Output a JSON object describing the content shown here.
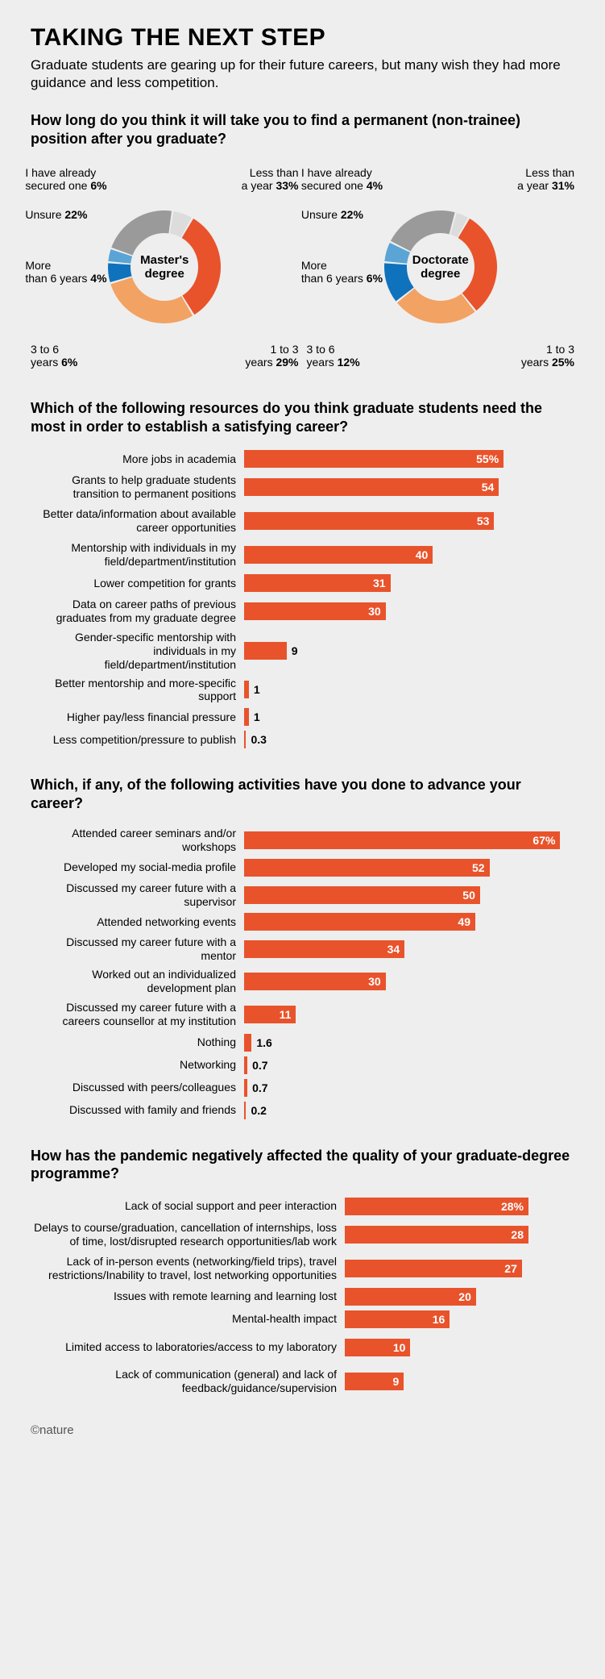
{
  "header": {
    "title": "TAKING THE NEXT STEP",
    "subtitle": "Graduate students are gearing up for their future careers, but many wish they had more guidance and less competition."
  },
  "q1": {
    "title": "How long do you think it will take you to find a permanent (non-trainee) position after you graduate?",
    "donuts": [
      {
        "center": "Master's degree",
        "slices": [
          {
            "label_a": "Less than",
            "label_b": "a year",
            "pct": 33,
            "color": "#e8532b"
          },
          {
            "label_a": "1 to 3",
            "label_b": "years",
            "pct": 29,
            "color": "#f2a263"
          },
          {
            "label_a": "3 to 6",
            "label_b": "years",
            "pct": 6,
            "color": "#0f72bd"
          },
          {
            "label_a": "More",
            "label_b": "than 6 years",
            "pct": 4,
            "color": "#5aa4d6"
          },
          {
            "label_a": "Unsure",
            "label_b": "",
            "pct": 22,
            "color": "#9a9a9a"
          },
          {
            "label_a": "I have already",
            "label_b": "secured one",
            "pct": 6,
            "color": "#dcdcdc"
          }
        ]
      },
      {
        "center": "Doctorate degree",
        "slices": [
          {
            "label_a": "Less than",
            "label_b": "a year",
            "pct": 31,
            "color": "#e8532b"
          },
          {
            "label_a": "1 to 3",
            "label_b": "years",
            "pct": 25,
            "color": "#f2a263"
          },
          {
            "label_a": "3 to 6",
            "label_b": "years",
            "pct": 12,
            "color": "#0f72bd"
          },
          {
            "label_a": "More",
            "label_b": "than 6 years",
            "pct": 6,
            "color": "#5aa4d6"
          },
          {
            "label_a": "Unsure",
            "label_b": "",
            "pct": 22,
            "color": "#9a9a9a"
          },
          {
            "label_a": "I have already",
            "label_b": "secured one",
            "pct": 4,
            "color": "#dcdcdc"
          }
        ]
      }
    ],
    "donut_style": {
      "outer_r": 70,
      "inner_r": 42,
      "gap_deg": 2,
      "start_deg": 30
    }
  },
  "q2": {
    "title": "Which of the following resources do you think graduate students need the most in order to establish a satisfying career?",
    "max": 70,
    "bar_color": "#e8532b",
    "items": [
      {
        "label": "More jobs in academia",
        "val": 55,
        "disp": "55%"
      },
      {
        "label": "Grants to help graduate students transition to permanent positions",
        "val": 54,
        "disp": "54"
      },
      {
        "label": "Better data/information about available career opportunities",
        "val": 53,
        "disp": "53"
      },
      {
        "label": "Mentorship with individuals in my field/department/institution",
        "val": 40,
        "disp": "40"
      },
      {
        "label": "Lower competition for grants",
        "val": 31,
        "disp": "31"
      },
      {
        "label": "Data on career paths of previous graduates from my graduate degree",
        "val": 30,
        "disp": "30"
      },
      {
        "label": "Gender-specific mentorship with individuals in my field/department/institution",
        "val": 9,
        "disp": "9"
      },
      {
        "label": "Better mentorship and more-specific support",
        "val": 1,
        "disp": "1"
      },
      {
        "label": "Higher pay/less financial pressure",
        "val": 1,
        "disp": "1"
      },
      {
        "label": "Less competition/pressure to publish",
        "val": 0.3,
        "disp": "0.3"
      }
    ]
  },
  "q3": {
    "title": "Which, if any, of the following activities have you done to advance your career?",
    "max": 70,
    "bar_color": "#e8532b",
    "items": [
      {
        "label": "Attended career seminars and/or workshops",
        "val": 67,
        "disp": "67%"
      },
      {
        "label": "Developed my social-media profile",
        "val": 52,
        "disp": "52"
      },
      {
        "label": "Discussed my career future with a supervisor",
        "val": 50,
        "disp": "50"
      },
      {
        "label": "Attended networking events",
        "val": 49,
        "disp": "49"
      },
      {
        "label": "Discussed my career future with a mentor",
        "val": 34,
        "disp": "34"
      },
      {
        "label": "Worked out an individualized development plan",
        "val": 30,
        "disp": "30"
      },
      {
        "label": "Discussed my career future with a careers counsellor at my institution",
        "val": 11,
        "disp": "11"
      },
      {
        "label": "Nothing",
        "val": 1.6,
        "disp": "1.6"
      },
      {
        "label": "Networking",
        "val": 0.7,
        "disp": "0.7"
      },
      {
        "label": "Discussed with peers/colleagues",
        "val": 0.7,
        "disp": "0.7"
      },
      {
        "label": "Discussed with family and friends",
        "val": 0.2,
        "disp": "0.2"
      }
    ]
  },
  "q4": {
    "title": "How has the pandemic negatively affected the quality of your graduate-degree programme?",
    "max": 35,
    "bar_color": "#e8532b",
    "label_width": 380,
    "items": [
      {
        "label": "Lack of social support and peer interaction",
        "val": 28,
        "disp": "28%"
      },
      {
        "label": "Delays to course/graduation, cancellation of internships, loss of time, lost/disrupted research opportunities/lab work",
        "val": 28,
        "disp": "28"
      },
      {
        "label": "Lack of in-person events (networking/field trips), travel restrictions/Inability to travel, lost networking opportunities",
        "val": 27,
        "disp": "27"
      },
      {
        "label": "Issues with remote learning and learning lost",
        "val": 20,
        "disp": "20"
      },
      {
        "label": "Mental-health impact",
        "val": 16,
        "disp": "16"
      },
      {
        "label": "Limited access to laboratories/access to my laboratory",
        "val": 10,
        "disp": "10"
      },
      {
        "label": "Lack of communication (general) and lack of feedback/guidance/supervision",
        "val": 9,
        "disp": "9"
      }
    ]
  },
  "footer": "©nature"
}
